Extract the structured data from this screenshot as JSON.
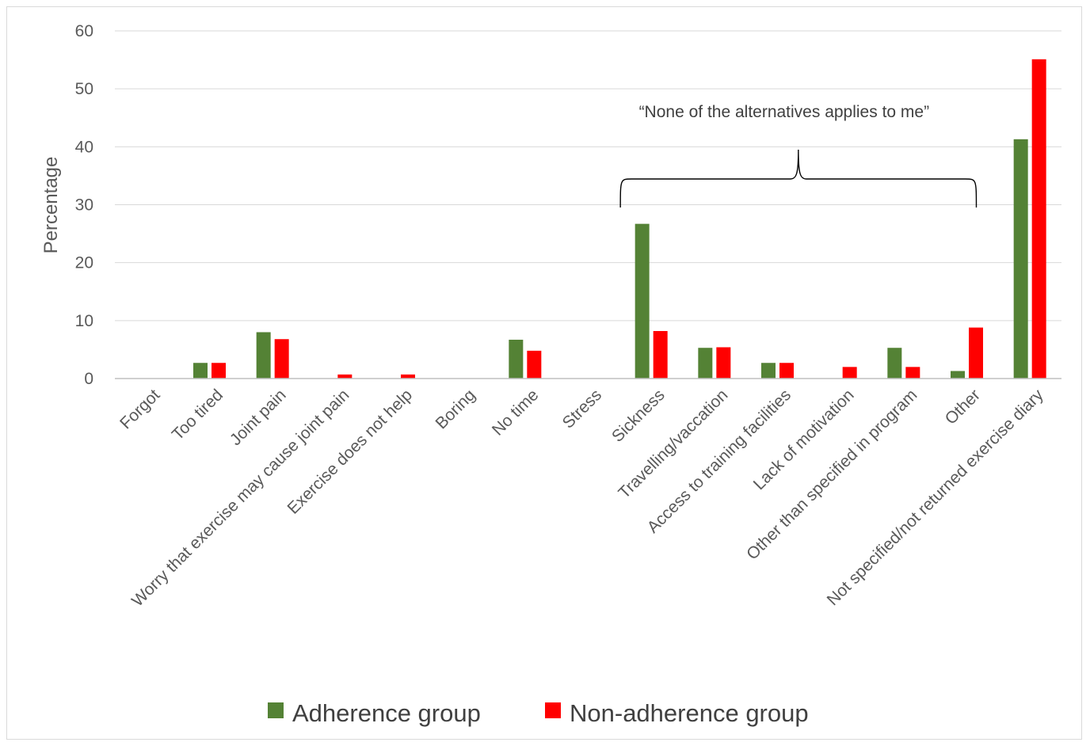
{
  "chart_data": {
    "type": "bar",
    "ylabel": "Percentage",
    "ylim": [
      0,
      60
    ],
    "yticks": [
      0,
      10,
      20,
      30,
      40,
      50,
      60
    ],
    "categories": [
      "Forgot",
      "Too tired",
      "Joint pain",
      "Worry that exercise may cause joint pain",
      "Exercise does not help",
      "Boring",
      "No time",
      "Stress",
      "Sickness",
      "Travelling/vaccation",
      "Access to training facilities",
      "Lack of motivation",
      "Other than specified in program",
      "Other",
      "Not specified/not returned exercise diary"
    ],
    "series": [
      {
        "name": "Adherence group",
        "color": "#548235",
        "values": [
          0,
          2.7,
          8.0,
          0,
          0,
          0,
          6.7,
          0,
          26.7,
          5.3,
          2.7,
          0,
          5.3,
          1.3,
          41.3
        ]
      },
      {
        "name": "Non-adherence group",
        "color": "#ff0000",
        "values": [
          0,
          2.7,
          6.8,
          0.7,
          0.7,
          0,
          4.8,
          0,
          8.2,
          5.4,
          2.7,
          2.0,
          2.0,
          8.8,
          55.1
        ]
      }
    ],
    "annotation": {
      "text": "“None of the alternatives applies to me”",
      "from_category": 8,
      "to_category": 13
    },
    "grid": true,
    "legend_position": "bottom"
  }
}
